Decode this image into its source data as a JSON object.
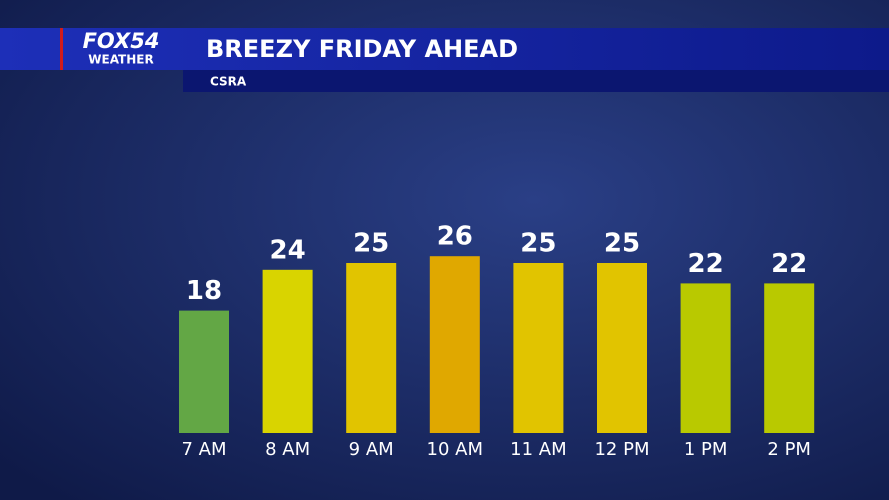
{
  "logo": {
    "brand": "FOX54",
    "tag": "WEATHER"
  },
  "chart_data": {
    "type": "bar",
    "title": "BREEZY FRIDAY AHEAD",
    "subtitle": "CSRA",
    "categories": [
      "7 AM",
      "8 AM",
      "9 AM",
      "10 AM",
      "11 AM",
      "12 PM",
      "1 PM",
      "2 PM"
    ],
    "values": [
      18,
      24,
      25,
      26,
      25,
      25,
      22,
      22
    ],
    "colors": [
      "#63a745",
      "#d9d400",
      "#e1c400",
      "#e0a800",
      "#e1c400",
      "#e1c400",
      "#b9c900",
      "#b9c900"
    ]
  }
}
